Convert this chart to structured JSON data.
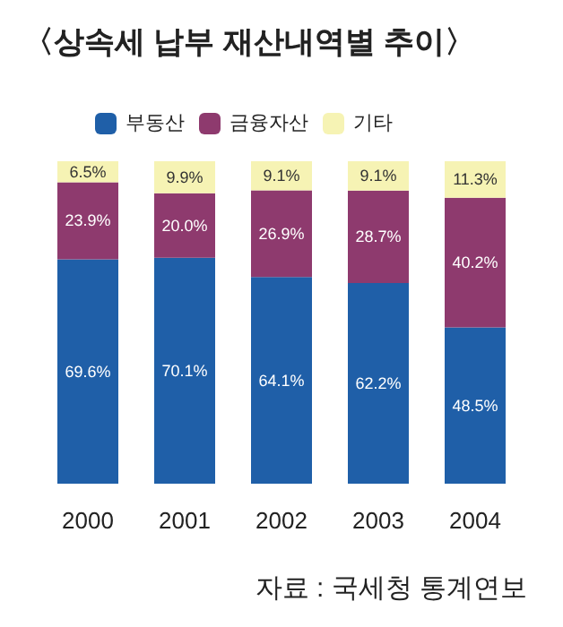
{
  "chart_data": {
    "type": "bar",
    "title": "〈상속세 납부 재산내역별 추이〉",
    "categories": [
      "2000",
      "2001",
      "2002",
      "2003",
      "2004"
    ],
    "stacked": true,
    "legend": "top left",
    "tick_labels": "x",
    "ylim": [
      0,
      100
    ],
    "series": [
      {
        "name": "부동산",
        "color": "#1f5fa8",
        "values": [
          69.6,
          70.1,
          64.1,
          62.2,
          48.5
        ],
        "value_labels": [
          "69.6%",
          "70.1%",
          "64.1%",
          "62.2%",
          "48.5%"
        ]
      },
      {
        "name": "금융자산",
        "color": "#8e3a6e",
        "values": [
          23.9,
          20.0,
          26.9,
          28.7,
          40.2
        ],
        "value_labels": [
          "23.9%",
          "20.0%",
          "26.9%",
          "28.7%",
          "40.2%"
        ]
      },
      {
        "name": "기타",
        "color": "#f6f3b4",
        "values": [
          6.5,
          9.9,
          9.1,
          9.1,
          11.3
        ],
        "value_labels": [
          "6.5%",
          "9.9%",
          "9.1%",
          "9.1%",
          "11.3%"
        ]
      }
    ],
    "annotations": [
      "자료 : 국세청 통계연보"
    ]
  }
}
